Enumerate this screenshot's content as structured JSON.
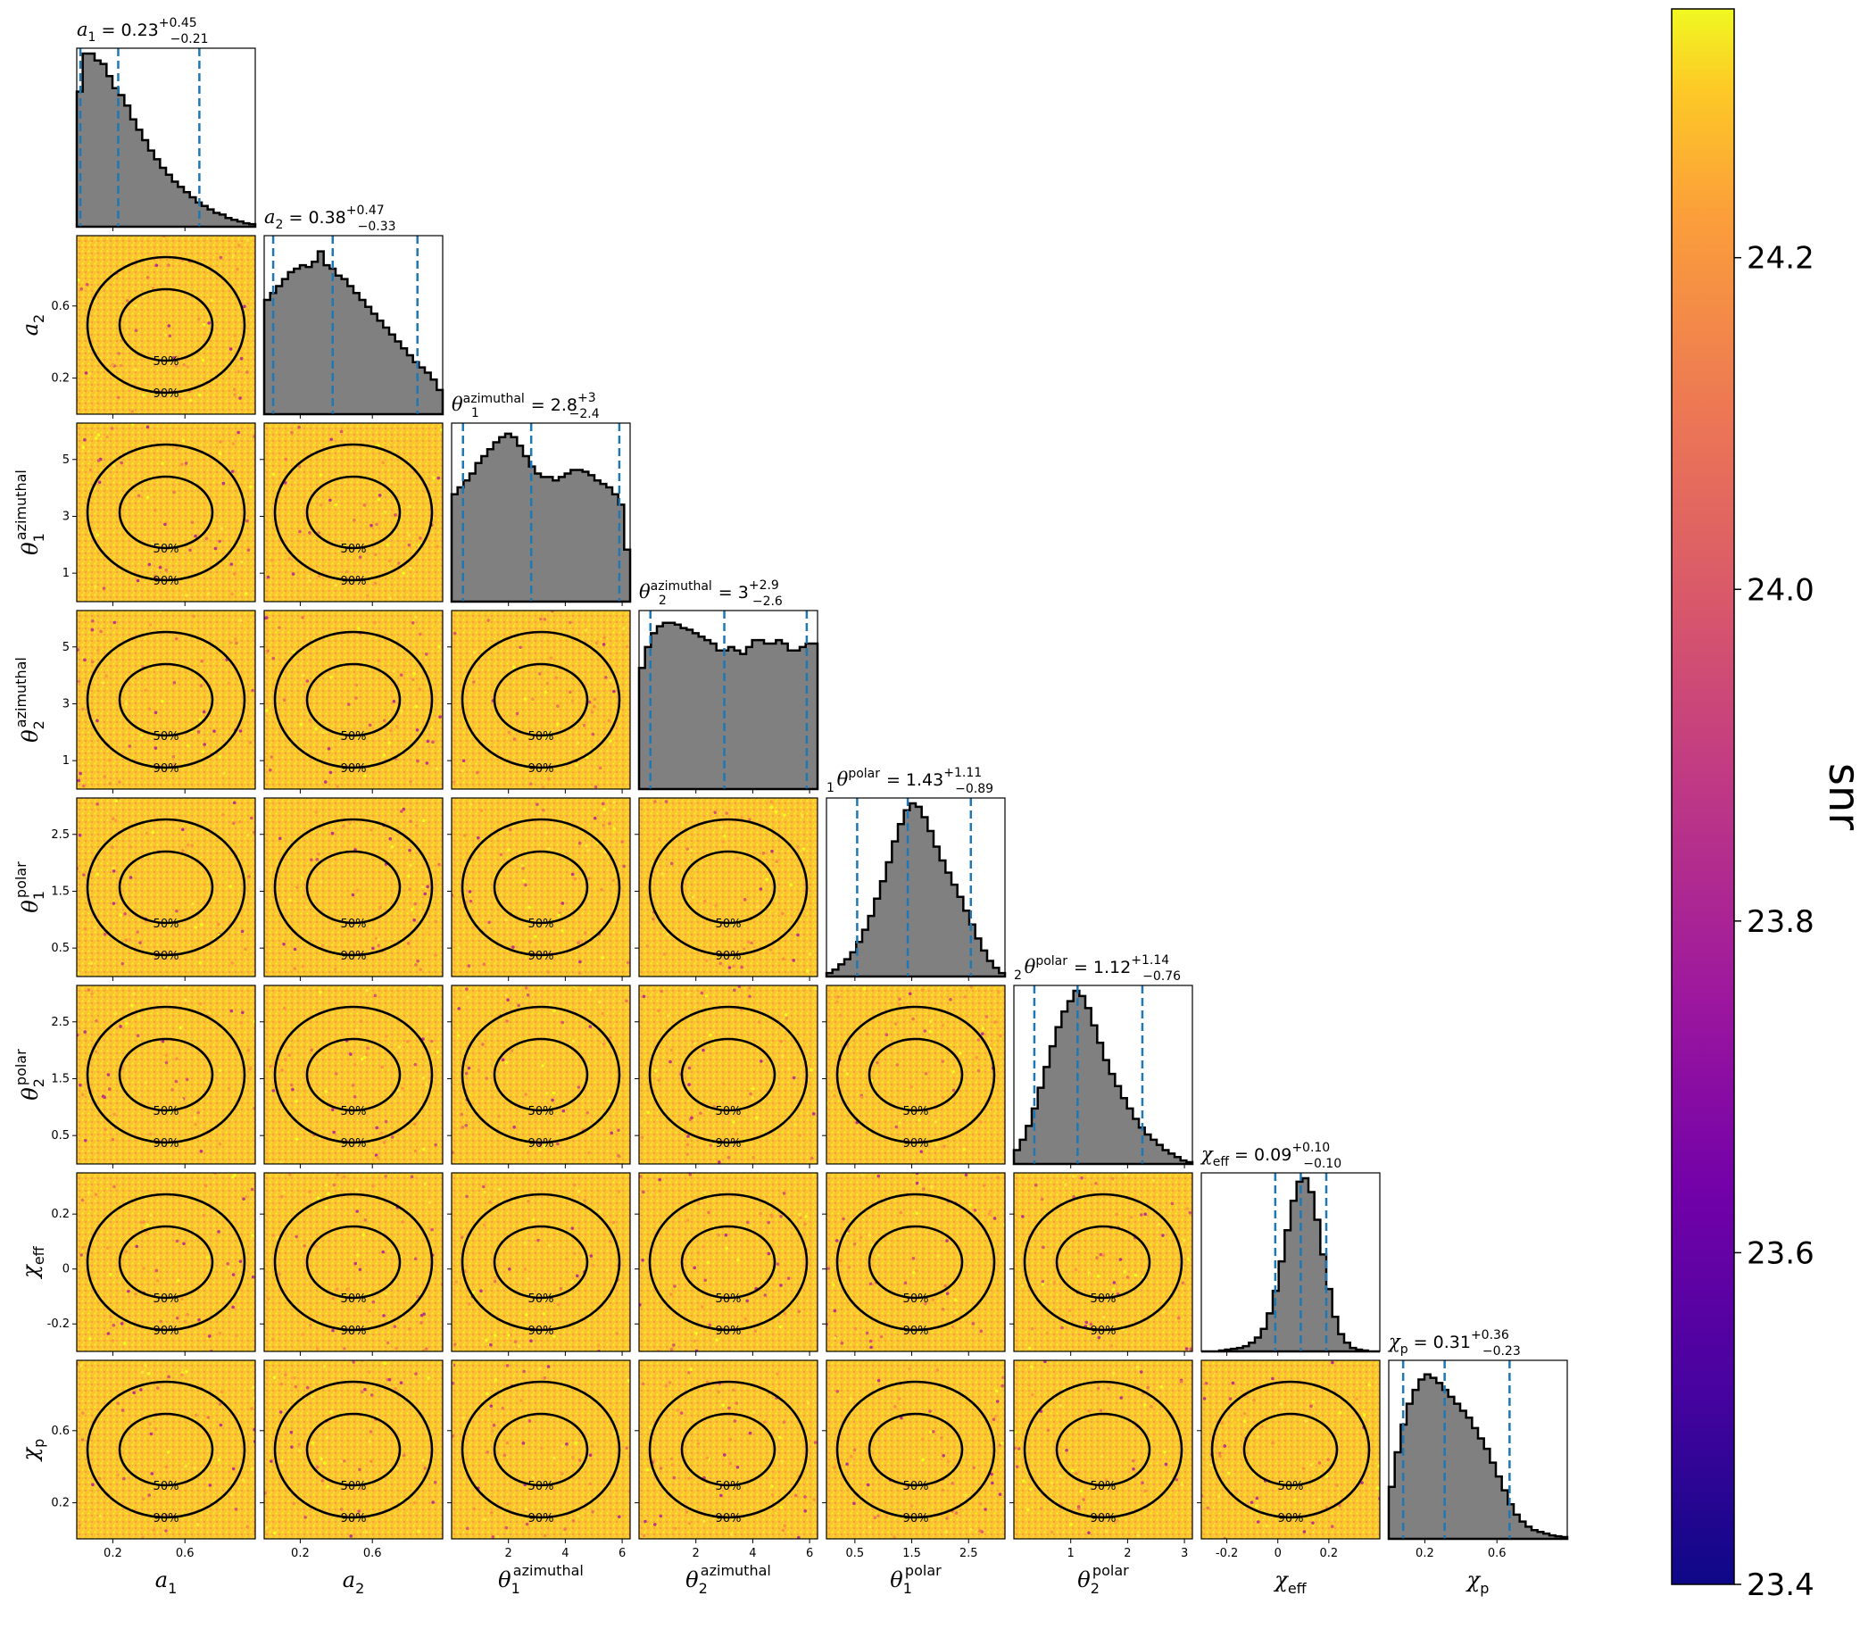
{
  "chart_data": {
    "type": "corner",
    "parameters": [
      {
        "name": "a1",
        "label_base": "a",
        "label_sub": "1",
        "label_sup": "",
        "ticks": [
          0.2,
          0.6
        ],
        "lim": [
          0.0,
          0.99
        ],
        "title": {
          "base": "a",
          "sub": "1",
          "sup": "",
          "median": "0.23",
          "plus": "+0.45",
          "minus": "−0.21"
        },
        "quantiles": [
          0.02,
          0.23,
          0.68
        ],
        "hist": [
          0.78,
          1.0,
          1.0,
          0.96,
          0.94,
          0.87,
          0.8,
          0.76,
          0.7,
          0.62,
          0.56,
          0.5,
          0.44,
          0.39,
          0.34,
          0.3,
          0.26,
          0.23,
          0.2,
          0.17,
          0.14,
          0.12,
          0.1,
          0.08,
          0.07,
          0.05,
          0.04,
          0.03,
          0.02,
          0.015
        ]
      },
      {
        "name": "a2",
        "label_base": "a",
        "label_sub": "2",
        "label_sup": "",
        "ticks": [
          0.2,
          0.6
        ],
        "lim": [
          0.0,
          0.99
        ],
        "title": {
          "base": "a",
          "sub": "2",
          "sup": "",
          "median": "0.38",
          "plus": "+0.47",
          "minus": "−0.33"
        },
        "quantiles": [
          0.05,
          0.38,
          0.85
        ],
        "hist": [
          0.66,
          0.7,
          0.74,
          0.78,
          0.82,
          0.84,
          0.86,
          0.85,
          0.88,
          0.94,
          0.86,
          0.84,
          0.8,
          0.78,
          0.74,
          0.7,
          0.66,
          0.62,
          0.58,
          0.54,
          0.5,
          0.46,
          0.42,
          0.38,
          0.34,
          0.3,
          0.27,
          0.24,
          0.2,
          0.14
        ]
      },
      {
        "name": "theta1_azimuthal",
        "label_base": "θ",
        "label_sub": "1",
        "label_sup": "azimuthal",
        "ticks": [
          2,
          4,
          6
        ],
        "lim": [
          0.0,
          6.28
        ],
        "title": {
          "base": "θ",
          "sub": "1",
          "sup": "azimuthal",
          "median": "2.8",
          "plus": "+3",
          "minus": "−2.4"
        },
        "quantiles": [
          0.4,
          2.8,
          5.9
        ],
        "hist": [
          0.62,
          0.66,
          0.7,
          0.74,
          0.8,
          0.84,
          0.88,
          0.92,
          0.95,
          0.97,
          0.95,
          0.9,
          0.84,
          0.78,
          0.74,
          0.72,
          0.72,
          0.7,
          0.72,
          0.74,
          0.76,
          0.76,
          0.75,
          0.73,
          0.7,
          0.68,
          0.66,
          0.62,
          0.56,
          0.3
        ]
      },
      {
        "name": "theta2_azimuthal",
        "label_base": "θ",
        "label_sub": "2",
        "label_sup": "azimuthal",
        "ticks": [
          2,
          4,
          6
        ],
        "lim": [
          0.0,
          6.28
        ],
        "title": {
          "base": "θ",
          "sub": "2",
          "sup": "azimuthal",
          "median": "3",
          "plus": "+2.9",
          "minus": "−2.6"
        },
        "quantiles": [
          0.4,
          3.0,
          5.9
        ],
        "hist": [
          0.7,
          0.82,
          0.9,
          0.94,
          0.96,
          0.96,
          0.95,
          0.93,
          0.92,
          0.9,
          0.88,
          0.86,
          0.84,
          0.8,
          0.8,
          0.82,
          0.8,
          0.78,
          0.82,
          0.86,
          0.86,
          0.84,
          0.84,
          0.86,
          0.84,
          0.8,
          0.8,
          0.82,
          0.84,
          0.84
        ]
      },
      {
        "name": "theta1_polar",
        "label_base": "θ",
        "label_sub": "1",
        "label_sup": "polar",
        "ticks": [
          0.5,
          1.5,
          2.5
        ],
        "lim": [
          0.0,
          3.14
        ],
        "title": {
          "base": "θ",
          "sub": "1",
          "sup": "polar",
          "median": "1.43",
          "plus": "+1.11",
          "minus": "−0.89"
        },
        "quantiles": [
          0.54,
          1.43,
          2.54
        ],
        "hist": [
          0.02,
          0.04,
          0.07,
          0.1,
          0.14,
          0.2,
          0.27,
          0.35,
          0.45,
          0.55,
          0.66,
          0.78,
          0.88,
          0.96,
          1.0,
          0.98,
          0.92,
          0.84,
          0.75,
          0.67,
          0.6,
          0.53,
          0.46,
          0.38,
          0.3,
          0.22,
          0.15,
          0.09,
          0.05,
          0.02
        ]
      },
      {
        "name": "theta2_polar",
        "label_base": "θ",
        "label_sub": "2",
        "label_sup": "polar",
        "ticks": [
          1,
          2,
          3
        ],
        "lim": [
          0.0,
          3.14
        ],
        "title": {
          "base": "θ",
          "sub": "2",
          "sup": "polar",
          "median": "1.12",
          "plus": "+1.14",
          "minus": "−0.76"
        },
        "quantiles": [
          0.36,
          1.12,
          2.26
        ],
        "hist": [
          0.08,
          0.14,
          0.22,
          0.32,
          0.44,
          0.56,
          0.68,
          0.79,
          0.88,
          0.94,
          1.0,
          0.97,
          0.9,
          0.8,
          0.7,
          0.6,
          0.52,
          0.45,
          0.38,
          0.32,
          0.26,
          0.21,
          0.17,
          0.14,
          0.11,
          0.08,
          0.06,
          0.04,
          0.02,
          0.01
        ]
      },
      {
        "name": "chi_eff",
        "label_base": "χ",
        "label_sub": "eff",
        "label_sup": "",
        "ticks": [
          -0.2,
          0.0,
          0.2
        ],
        "lim": [
          -0.3,
          0.4
        ],
        "title": {
          "base": "χ",
          "sub": "eff",
          "sup": "",
          "median": "0.09",
          "plus": "+0.10",
          "minus": "−0.10"
        },
        "quantiles": [
          -0.01,
          0.09,
          0.19
        ],
        "hist": [
          0.0,
          0.0,
          0.0,
          0.005,
          0.01,
          0.015,
          0.02,
          0.03,
          0.05,
          0.08,
          0.13,
          0.22,
          0.35,
          0.52,
          0.7,
          0.87,
          0.98,
          1.0,
          0.92,
          0.76,
          0.56,
          0.36,
          0.2,
          0.1,
          0.05,
          0.02,
          0.01,
          0.005,
          0.0,
          0.0
        ]
      },
      {
        "name": "chi_p",
        "label_base": "χ",
        "label_sub": "p",
        "label_sup": "",
        "ticks": [
          0.2,
          0.6
        ],
        "lim": [
          0.0,
          0.99
        ],
        "title": {
          "base": "χ",
          "sub": "p",
          "sup": "",
          "median": "0.31",
          "plus": "+0.36",
          "minus": "−0.23"
        },
        "quantiles": [
          0.08,
          0.31,
          0.67
        ],
        "hist": [
          0.3,
          0.5,
          0.66,
          0.78,
          0.86,
          0.92,
          0.95,
          0.93,
          0.9,
          0.86,
          0.82,
          0.78,
          0.74,
          0.7,
          0.64,
          0.58,
          0.52,
          0.44,
          0.36,
          0.28,
          0.2,
          0.14,
          0.1,
          0.07,
          0.05,
          0.04,
          0.03,
          0.02,
          0.015,
          0.01
        ]
      }
    ],
    "y_ticks": {
      "a2": [
        0.2,
        0.6
      ],
      "theta1_azimuthal": [
        1,
        3,
        5
      ],
      "theta2_azimuthal": [
        1,
        3,
        5
      ],
      "theta1_polar": [
        0.5,
        1.5,
        2.5
      ],
      "theta2_polar": [
        0.5,
        1.5,
        2.5
      ],
      "chi_eff": [
        -0.2,
        0.0,
        0.2
      ],
      "chi_p": [
        0.2,
        0.6
      ]
    },
    "y_lim": {
      "a2": [
        0.0,
        0.99
      ],
      "theta1_azimuthal": [
        0.0,
        6.28
      ],
      "theta2_azimuthal": [
        0.0,
        6.28
      ],
      "theta1_polar": [
        0.0,
        3.14
      ],
      "theta2_polar": [
        0.0,
        3.14
      ],
      "chi_eff": [
        -0.3,
        0.35
      ],
      "chi_p": [
        0.0,
        0.99
      ]
    },
    "contour_levels": [
      "50%",
      "90%"
    ],
    "colorbar": {
      "label": "snr",
      "min": 23.4,
      "max": 24.35,
      "ticks": [
        "24.2",
        "24.0",
        "23.8",
        "23.6",
        "23.4"
      ],
      "tick_values": [
        24.2,
        24.0,
        23.8,
        23.6,
        23.4
      ],
      "colormap": "plasma"
    },
    "histogram_color": "#808080",
    "quantile_line_color": "#1f77b4"
  }
}
